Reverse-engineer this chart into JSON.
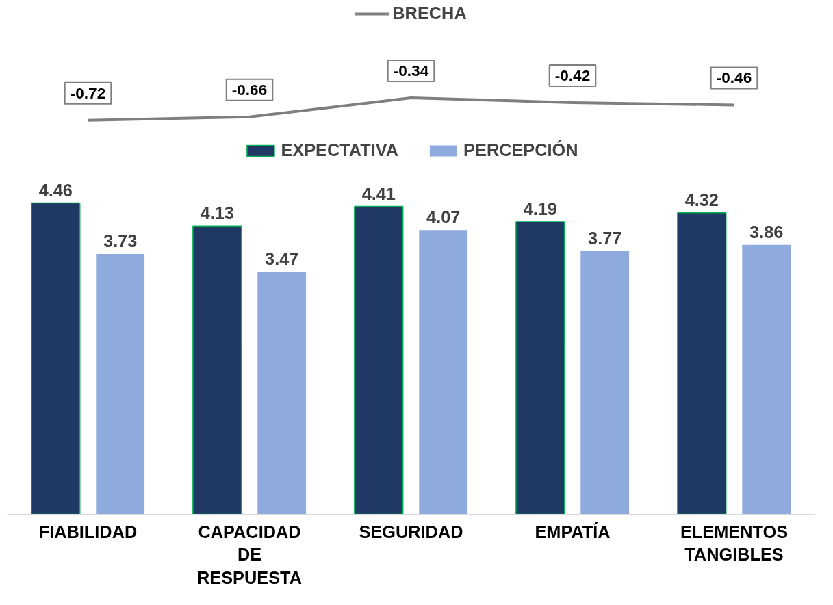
{
  "chart_data": [
    {
      "type": "line",
      "categories": [
        null,
        null,
        null,
        null,
        null
      ],
      "series": [
        {
          "name": "BRECHA",
          "color": "#7f7f7f",
          "values": [
            -0.72,
            -0.66,
            -0.34,
            -0.42,
            -0.46
          ]
        }
      ],
      "tick_labels": false,
      "data_labels": true,
      "legend": "top",
      "grid": false
    },
    {
      "type": "bar",
      "categories": [
        "FIABILIDAD",
        "CAPACIDAD DE RESPUESTA",
        "SEGURIDAD",
        "EMPATÍA",
        "ELEMENTOS TANGIBLES"
      ],
      "series": [
        {
          "name": "EXPECTATIVA",
          "color": "#203864",
          "values": [
            4.46,
            4.13,
            4.41,
            4.19,
            4.32
          ]
        },
        {
          "name": "PERCEPCIÓN",
          "color": "#8faadc",
          "values": [
            3.73,
            3.47,
            4.07,
            3.77,
            3.86
          ]
        }
      ],
      "tick_labels": "x",
      "data_labels": true,
      "legend": "top",
      "grid": false
    }
  ]
}
